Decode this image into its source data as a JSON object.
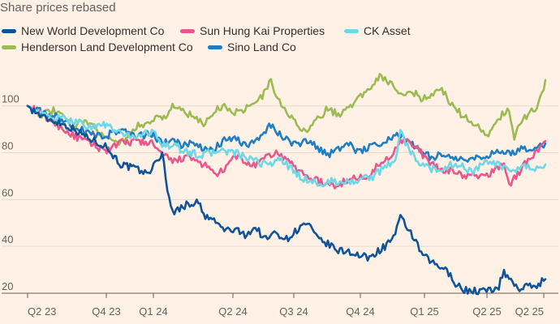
{
  "title": "Share prices rebased",
  "legend": [
    {
      "name": "New World Development Co",
      "color": "#0F5499"
    },
    {
      "name": "Sun Hung Kai Properties",
      "color": "#E9578C"
    },
    {
      "name": "CK Asset",
      "color": "#6FD8E6"
    },
    {
      "name": "Henderson Land Development Co",
      "color": "#9DBB53"
    },
    {
      "name": "Sino Land Co",
      "color": "#1F7EC2"
    }
  ],
  "chart_data": {
    "type": "line",
    "title": "Share prices rebased",
    "xlabel": "",
    "ylabel": "",
    "x_ticks": [
      "Q2 23",
      "Q4 23",
      "Q1 24",
      "Q2 24",
      "Q3 24",
      "Q4 24",
      "Q1 25",
      "Q2 25",
      "Q2 25"
    ],
    "y_ticks": [
      20,
      40,
      60,
      80,
      100
    ],
    "ylim": [
      20,
      112
    ],
    "grid": "horizontal",
    "legend_position": "top",
    "series": [
      {
        "name": "New World Development Co",
        "color": "#0F5499",
        "points": [
          [
            0,
            100
          ],
          [
            0.03,
            95
          ],
          [
            0.06,
            93
          ],
          [
            0.09,
            90
          ],
          [
            0.12,
            86
          ],
          [
            0.15,
            83
          ],
          [
            0.18,
            75
          ],
          [
            0.21,
            73
          ],
          [
            0.23,
            71
          ],
          [
            0.25,
            76
          ],
          [
            0.26,
            80
          ],
          [
            0.27,
            65
          ],
          [
            0.28,
            54
          ],
          [
            0.29,
            56
          ],
          [
            0.31,
            58
          ],
          [
            0.33,
            59
          ],
          [
            0.34,
            53
          ],
          [
            0.36,
            51
          ],
          [
            0.38,
            47
          ],
          [
            0.4,
            47
          ],
          [
            0.42,
            45
          ],
          [
            0.44,
            48
          ],
          [
            0.46,
            43
          ],
          [
            0.48,
            46
          ],
          [
            0.5,
            43
          ],
          [
            0.52,
            47
          ],
          [
            0.54,
            50
          ],
          [
            0.56,
            43
          ],
          [
            0.58,
            41
          ],
          [
            0.6,
            38
          ],
          [
            0.62,
            38
          ],
          [
            0.64,
            36
          ],
          [
            0.66,
            35
          ],
          [
            0.67,
            37
          ],
          [
            0.69,
            40
          ],
          [
            0.71,
            45
          ],
          [
            0.72,
            52
          ],
          [
            0.74,
            46
          ],
          [
            0.76,
            37
          ],
          [
            0.78,
            33
          ],
          [
            0.8,
            31
          ],
          [
            0.82,
            27
          ],
          [
            0.83,
            23
          ],
          [
            0.85,
            21
          ],
          [
            0.87,
            21
          ],
          [
            0.89,
            21
          ],
          [
            0.91,
            23
          ],
          [
            0.92,
            29
          ],
          [
            0.94,
            24
          ],
          [
            0.95,
            22
          ],
          [
            0.97,
            23
          ],
          [
            0.98,
            23
          ],
          [
            1.0,
            26
          ]
        ]
      },
      {
        "name": "Sun Hung Kai Properties",
        "color": "#E9578C",
        "points": [
          [
            0,
            100
          ],
          [
            0.03,
            96
          ],
          [
            0.05,
            93
          ],
          [
            0.07,
            90
          ],
          [
            0.09,
            87
          ],
          [
            0.12,
            84
          ],
          [
            0.15,
            81
          ],
          [
            0.18,
            84
          ],
          [
            0.21,
            85
          ],
          [
            0.24,
            84
          ],
          [
            0.26,
            79
          ],
          [
            0.28,
            76
          ],
          [
            0.3,
            78
          ],
          [
            0.32,
            77
          ],
          [
            0.34,
            75
          ],
          [
            0.36,
            71
          ],
          [
            0.38,
            72
          ],
          [
            0.4,
            79
          ],
          [
            0.42,
            76
          ],
          [
            0.44,
            74
          ],
          [
            0.46,
            78
          ],
          [
            0.48,
            80
          ],
          [
            0.5,
            77
          ],
          [
            0.52,
            73
          ],
          [
            0.54,
            70
          ],
          [
            0.56,
            68
          ],
          [
            0.58,
            66
          ],
          [
            0.6,
            66
          ],
          [
            0.62,
            69
          ],
          [
            0.64,
            69
          ],
          [
            0.66,
            71
          ],
          [
            0.68,
            75
          ],
          [
            0.7,
            78
          ],
          [
            0.72,
            86
          ],
          [
            0.74,
            84
          ],
          [
            0.76,
            80
          ],
          [
            0.78,
            75
          ],
          [
            0.8,
            72
          ],
          [
            0.82,
            73
          ],
          [
            0.84,
            70
          ],
          [
            0.86,
            70
          ],
          [
            0.88,
            70
          ],
          [
            0.9,
            72
          ],
          [
            0.92,
            76
          ],
          [
            0.93,
            66
          ],
          [
            0.95,
            72
          ],
          [
            0.97,
            78
          ],
          [
            0.99,
            82
          ],
          [
            1.0,
            85
          ]
        ]
      },
      {
        "name": "CK Asset",
        "color": "#6FD8E6",
        "points": [
          [
            0,
            100
          ],
          [
            0.03,
            96
          ],
          [
            0.05,
            95
          ],
          [
            0.08,
            94
          ],
          [
            0.1,
            93
          ],
          [
            0.12,
            91
          ],
          [
            0.15,
            92
          ],
          [
            0.18,
            88
          ],
          [
            0.21,
            87
          ],
          [
            0.24,
            89
          ],
          [
            0.26,
            84
          ],
          [
            0.28,
            83
          ],
          [
            0.31,
            80
          ],
          [
            0.34,
            79
          ],
          [
            0.37,
            81
          ],
          [
            0.4,
            80
          ],
          [
            0.43,
            77
          ],
          [
            0.46,
            75
          ],
          [
            0.49,
            77
          ],
          [
            0.51,
            73
          ],
          [
            0.53,
            69
          ],
          [
            0.55,
            68
          ],
          [
            0.57,
            66
          ],
          [
            0.59,
            68
          ],
          [
            0.61,
            67
          ],
          [
            0.63,
            68
          ],
          [
            0.65,
            69
          ],
          [
            0.67,
            70
          ],
          [
            0.69,
            74
          ],
          [
            0.71,
            77
          ],
          [
            0.72,
            89
          ],
          [
            0.74,
            80
          ],
          [
            0.76,
            75
          ],
          [
            0.78,
            73
          ],
          [
            0.8,
            73
          ],
          [
            0.82,
            75
          ],
          [
            0.84,
            74
          ],
          [
            0.86,
            72
          ],
          [
            0.88,
            75
          ],
          [
            0.9,
            76
          ],
          [
            0.92,
            73
          ],
          [
            0.94,
            72
          ],
          [
            0.96,
            74
          ],
          [
            0.98,
            73
          ],
          [
            1.0,
            75
          ]
        ]
      },
      {
        "name": "Henderson Land Development Co",
        "color": "#9DBB53",
        "points": [
          [
            0,
            100
          ],
          [
            0.03,
            96
          ],
          [
            0.05,
            98
          ],
          [
            0.07,
            95
          ],
          [
            0.09,
            92
          ],
          [
            0.11,
            94
          ],
          [
            0.13,
            90
          ],
          [
            0.15,
            88
          ],
          [
            0.17,
            84
          ],
          [
            0.19,
            86
          ],
          [
            0.21,
            91
          ],
          [
            0.23,
            93
          ],
          [
            0.25,
            95
          ],
          [
            0.27,
            96
          ],
          [
            0.28,
            100
          ],
          [
            0.3,
            98
          ],
          [
            0.32,
            95
          ],
          [
            0.34,
            92
          ],
          [
            0.36,
            98
          ],
          [
            0.38,
            100
          ],
          [
            0.4,
            97
          ],
          [
            0.42,
            99
          ],
          [
            0.44,
            101
          ],
          [
            0.46,
            106
          ],
          [
            0.47,
            112
          ],
          [
            0.48,
            104
          ],
          [
            0.5,
            97
          ],
          [
            0.52,
            92
          ],
          [
            0.54,
            89
          ],
          [
            0.56,
            94
          ],
          [
            0.58,
            99
          ],
          [
            0.6,
            96
          ],
          [
            0.62,
            100
          ],
          [
            0.64,
            103
          ],
          [
            0.66,
            108
          ],
          [
            0.68,
            113
          ],
          [
            0.7,
            110
          ],
          [
            0.72,
            104
          ],
          [
            0.74,
            107
          ],
          [
            0.76,
            103
          ],
          [
            0.78,
            105
          ],
          [
            0.8,
            107
          ],
          [
            0.82,
            100
          ],
          [
            0.84,
            96
          ],
          [
            0.86,
            92
          ],
          [
            0.88,
            90
          ],
          [
            0.89,
            87
          ],
          [
            0.91,
            95
          ],
          [
            0.93,
            99
          ],
          [
            0.94,
            87
          ],
          [
            0.96,
            95
          ],
          [
            0.98,
            99
          ],
          [
            0.99,
            103
          ],
          [
            1.0,
            111
          ]
        ]
      },
      {
        "name": "Sino Land Co",
        "color": "#1F7EC2",
        "points": [
          [
            0,
            100
          ],
          [
            0.03,
            97
          ],
          [
            0.06,
            95
          ],
          [
            0.09,
            91
          ],
          [
            0.12,
            88
          ],
          [
            0.15,
            87
          ],
          [
            0.18,
            90
          ],
          [
            0.21,
            87
          ],
          [
            0.24,
            88
          ],
          [
            0.26,
            84
          ],
          [
            0.28,
            85
          ],
          [
            0.3,
            83
          ],
          [
            0.32,
            84
          ],
          [
            0.34,
            81
          ],
          [
            0.36,
            82
          ],
          [
            0.38,
            85
          ],
          [
            0.4,
            86
          ],
          [
            0.42,
            83
          ],
          [
            0.44,
            85
          ],
          [
            0.46,
            90
          ],
          [
            0.47,
            92
          ],
          [
            0.48,
            89
          ],
          [
            0.5,
            86
          ],
          [
            0.52,
            83
          ],
          [
            0.54,
            85
          ],
          [
            0.56,
            82
          ],
          [
            0.58,
            79
          ],
          [
            0.6,
            82
          ],
          [
            0.62,
            84
          ],
          [
            0.64,
            80
          ],
          [
            0.66,
            83
          ],
          [
            0.68,
            84
          ],
          [
            0.7,
            86
          ],
          [
            0.72,
            88
          ],
          [
            0.74,
            84
          ],
          [
            0.76,
            80
          ],
          [
            0.78,
            78
          ],
          [
            0.8,
            79
          ],
          [
            0.82,
            78
          ],
          [
            0.84,
            77
          ],
          [
            0.86,
            77
          ],
          [
            0.88,
            78
          ],
          [
            0.9,
            80
          ],
          [
            0.92,
            81
          ],
          [
            0.94,
            80
          ],
          [
            0.96,
            82
          ],
          [
            0.98,
            82
          ],
          [
            1.0,
            84
          ]
        ]
      }
    ]
  }
}
